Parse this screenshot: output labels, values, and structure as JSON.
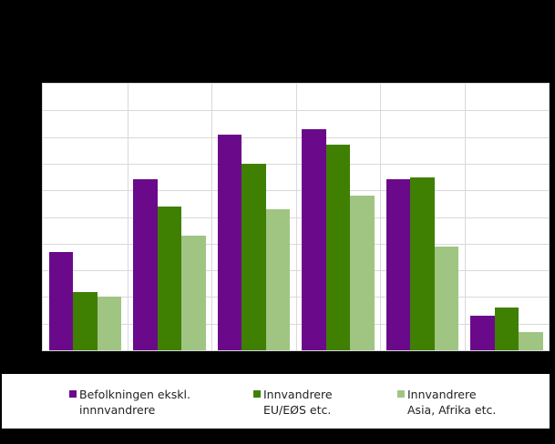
{
  "chart_data": {
    "type": "bar",
    "title": "",
    "xlabel": "",
    "ylabel": "",
    "categories": [
      "",
      "",
      "",
      "",
      "",
      ""
    ],
    "ylim": [
      0,
      10
    ],
    "grid": true,
    "legend_position": "bottom",
    "series": [
      {
        "name": "Befolkningen ekskl. innnvandrere",
        "color": "#6a0a8a",
        "values": [
          3.7,
          6.4,
          8.1,
          8.3,
          6.4,
          1.3
        ]
      },
      {
        "name": "Innvandrere EU/EØS etc.",
        "color": "#3f8003",
        "values": [
          2.2,
          5.4,
          7.0,
          7.7,
          6.5,
          1.6
        ]
      },
      {
        "name": "Innvandrere Asia, Afrika etc.",
        "color": "#a0c583",
        "values": [
          2.0,
          4.3,
          5.3,
          5.8,
          3.9,
          0.7
        ]
      }
    ]
  },
  "legend": [
    {
      "line1": "Befolkningen ekskl.",
      "line2": "innnvandrere",
      "color": "#6a0a8a"
    },
    {
      "line1": "Innvandrere",
      "line2": "EU/EØS etc.",
      "color": "#3f8003"
    },
    {
      "line1": "Innvandrere",
      "line2": "Asia, Afrika etc.",
      "color": "#a0c583"
    }
  ]
}
